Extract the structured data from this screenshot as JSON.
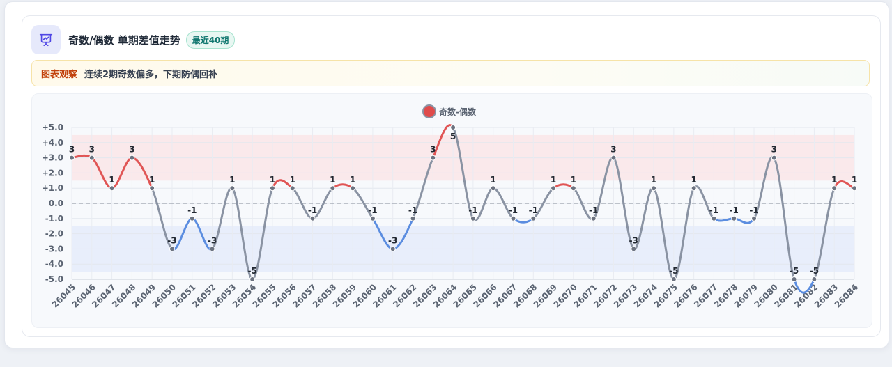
{
  "header": {
    "title": "奇数/偶数 单期差值走势",
    "badge": "最近40期",
    "icon": "presentation-chart-icon"
  },
  "note": {
    "label": "图表观察",
    "text": "连续2期奇数偏多，下期防偶回补"
  },
  "colors": {
    "positive": "#e05555",
    "negative": "#5b8de0",
    "neutral": "#8a93a3",
    "band_high": "#fbe3e6",
    "band_low": "#e3eafb"
  },
  "chart_data": {
    "type": "line",
    "title": "",
    "xlabel": "",
    "ylabel": "",
    "legend": {
      "label": "奇数-偶数",
      "position": "top"
    },
    "ylim": [
      -5,
      5
    ],
    "y_ticks": [
      {
        "value": 5,
        "label": "+5.0"
      },
      {
        "value": 4,
        "label": "+4.0"
      },
      {
        "value": 3,
        "label": "+3.0"
      },
      {
        "value": 2,
        "label": "+2.0"
      },
      {
        "value": 1,
        "label": "+1.0"
      },
      {
        "value": 0,
        "label": "0.0"
      },
      {
        "value": -1,
        "label": "-1.0"
      },
      {
        "value": -2,
        "label": "-2.0"
      },
      {
        "value": -3,
        "label": "-3.0"
      },
      {
        "value": -4,
        "label": "-4.0"
      },
      {
        "value": -5,
        "label": "-5.0"
      }
    ],
    "bands": [
      {
        "from": 1.5,
        "to": 4.5,
        "kind": "high"
      },
      {
        "from": -4.5,
        "to": -1.5,
        "kind": "low"
      }
    ],
    "reference_line": 0,
    "grid": true,
    "x": [
      "26045",
      "26046",
      "26047",
      "26048",
      "26049",
      "26050",
      "26051",
      "26052",
      "26053",
      "26054",
      "26055",
      "26056",
      "26057",
      "26058",
      "26059",
      "26060",
      "26061",
      "26062",
      "26063",
      "26064",
      "26065",
      "26066",
      "26067",
      "26068",
      "26069",
      "26070",
      "26071",
      "26072",
      "26073",
      "26074",
      "26075",
      "26076",
      "26077",
      "26078",
      "26079",
      "26080",
      "26081",
      "26082",
      "26083",
      "26084"
    ],
    "series": [
      {
        "name": "奇数-偶数",
        "values": [
          3,
          3,
          1,
          3,
          1,
          -3,
          -1,
          -3,
          1,
          -5,
          1,
          1,
          -1,
          1,
          1,
          -1,
          -3,
          -1,
          3,
          5,
          -1,
          1,
          -1,
          -1,
          1,
          1,
          -1,
          3,
          -3,
          1,
          -5,
          1,
          -1,
          -1,
          -1,
          3,
          -5,
          -5,
          1,
          1
        ],
        "labels": [
          "3",
          "3",
          "1",
          "3",
          "1",
          "-3",
          "-1",
          "-3",
          "1",
          "-5",
          "1",
          "1",
          "-1",
          "1",
          "1",
          "-1",
          "-3",
          "-1",
          "3",
          "5",
          "-1",
          "1",
          "-1",
          "-1",
          "1",
          "1",
          "-1",
          "3",
          "-3",
          "1",
          "-5",
          "1",
          "-1",
          "-1",
          "-1",
          "3",
          "-5",
          "-5",
          "1",
          "1"
        ]
      }
    ]
  }
}
